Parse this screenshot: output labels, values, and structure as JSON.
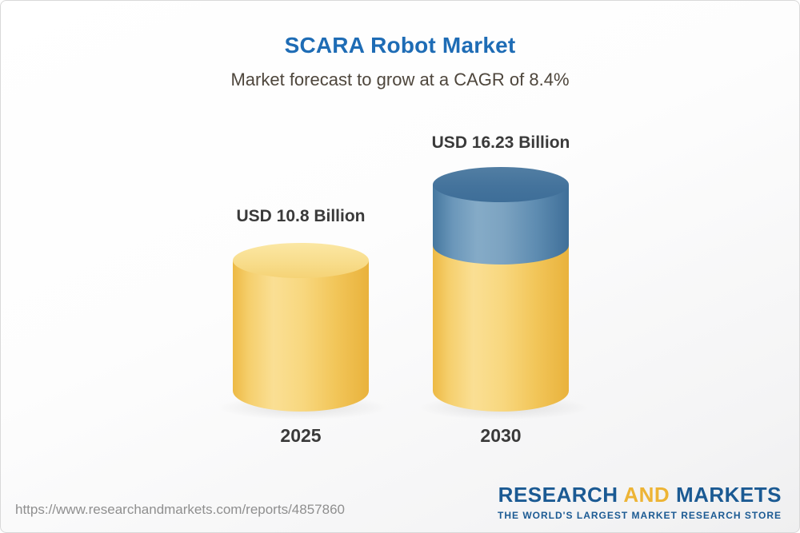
{
  "header": {
    "title": "SCARA Robot Market",
    "subtitle": "Market forecast to grow at a CAGR of 8.4%"
  },
  "chart_data": {
    "type": "bar",
    "variant": "3d-cylinder-columns",
    "title": "SCARA Robot Market",
    "subtitle": "Market forecast to grow at a CAGR of 8.4%",
    "categories": [
      "2025",
      "2030"
    ],
    "values": [
      10.8,
      16.23
    ],
    "value_labels": [
      "USD 10.8 Billion",
      "USD 16.23 Billion"
    ],
    "unit": "USD Billion",
    "cagr_percent": 8.4,
    "legend": "none",
    "axes": "none",
    "colors": {
      "bar_2025": "#F3C95F",
      "bar_2030_base": "#F3C95F",
      "bar_2030_growth_top": "#5C8CB5",
      "title": "#1E6CB5"
    }
  },
  "footer": {
    "url": "https://www.researchandmarkets.com/reports/4857860",
    "logo": {
      "research": "RESEARCH",
      "and": "AND",
      "markets": "MARKETS",
      "tagline": "THE WORLD'S LARGEST MARKET RESEARCH STORE"
    }
  }
}
